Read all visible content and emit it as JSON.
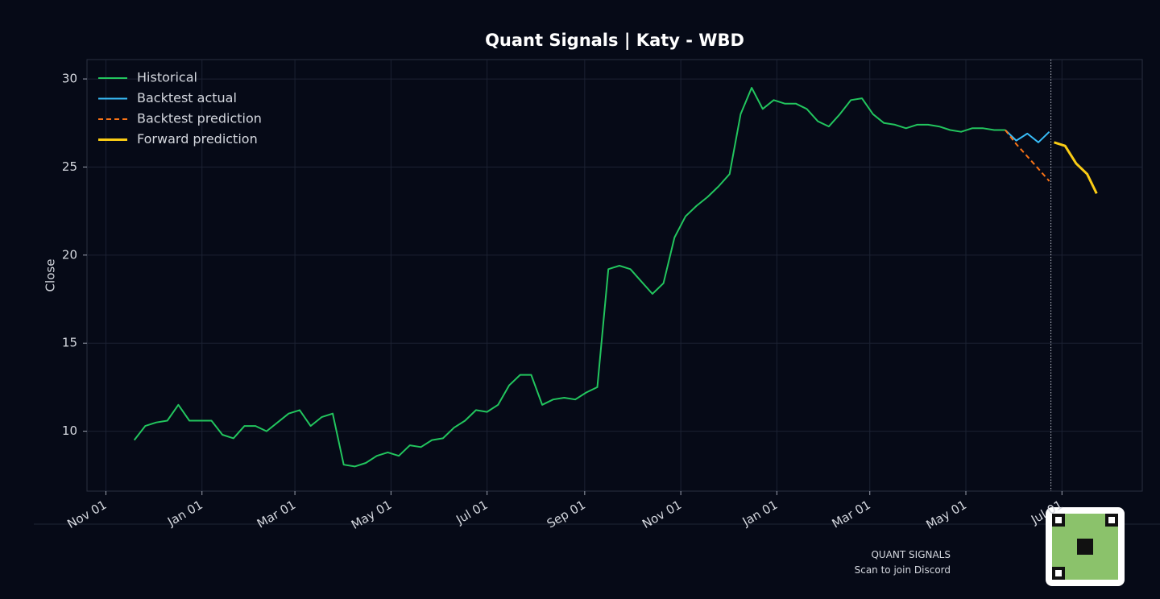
{
  "chart_data": {
    "type": "line",
    "title": "Quant Signals | Katy - WBD",
    "ylabel": "Close",
    "xlim": [
      "Oct 20",
      "Aug 21"
    ],
    "xticks": [
      "Nov 01",
      "Jan 01",
      "Mar 01",
      "May 01",
      "Jul 01",
      "Sep 01",
      "Nov 01",
      "Jan 01",
      "Mar 01",
      "May 01",
      "Jul 01"
    ],
    "ylim": [
      6.6,
      31.1
    ],
    "yticks": [
      10,
      15,
      20,
      25,
      30
    ],
    "grid": true,
    "legend": "upper left",
    "vline_x": "Jun 24",
    "series": [
      {
        "name": "Historical",
        "color": "#22c55e",
        "style": "solid",
        "x": [
          "Nov 19",
          "Nov 26",
          "Dec 03",
          "Dec 10",
          "Dec 17",
          "Dec 24",
          "Dec 31",
          "Jan 07",
          "Jan 14",
          "Jan 21",
          "Jan 28",
          "Feb 04",
          "Feb 11",
          "Feb 18",
          "Feb 25",
          "Mar 04",
          "Mar 11",
          "Mar 18",
          "Mar 25",
          "Apr 01",
          "Apr 08",
          "Apr 15",
          "Apr 22",
          "Apr 29",
          "May 06",
          "May 13",
          "May 20",
          "May 27",
          "Jun 03",
          "Jun 10",
          "Jun 17",
          "Jun 24",
          "Jul 01",
          "Jul 08",
          "Jul 15",
          "Jul 22",
          "Jul 29",
          "Aug 05",
          "Aug 12",
          "Aug 19",
          "Aug 26",
          "Sep 02",
          "Sep 09",
          "Sep 16",
          "Sep 23",
          "Sep 30",
          "Oct 07",
          "Oct 14",
          "Oct 21",
          "Oct 28",
          "Nov 04",
          "Nov 11",
          "Nov 18",
          "Nov 25",
          "Dec 02",
          "Dec 09",
          "Dec 16",
          "Dec 23",
          "Dec 30",
          "Jan 06",
          "Jan 13",
          "Jan 20",
          "Jan 27",
          "Feb 03",
          "Feb 10",
          "Feb 17",
          "Feb 24",
          "Mar 03",
          "Mar 10",
          "Mar 17",
          "Mar 24",
          "Mar 31",
          "Apr 07",
          "Apr 14",
          "Apr 21",
          "Apr 28",
          "May 05",
          "May 12",
          "May 19",
          "May 26"
        ],
        "values": [
          9.5,
          10.3,
          10.5,
          10.6,
          11.5,
          10.6,
          10.6,
          10.6,
          9.8,
          9.6,
          10.3,
          10.3,
          10.0,
          10.5,
          11.0,
          11.2,
          10.3,
          10.8,
          11.0,
          8.1,
          8.0,
          8.2,
          8.6,
          8.8,
          8.6,
          9.2,
          9.1,
          9.5,
          9.6,
          10.2,
          10.6,
          11.2,
          11.1,
          11.5,
          12.6,
          13.2,
          13.2,
          11.5,
          11.8,
          11.9,
          11.8,
          12.2,
          12.5,
          19.2,
          19.4,
          19.2,
          18.5,
          17.8,
          18.4,
          21.0,
          22.2,
          22.8,
          23.3,
          23.9,
          24.6,
          28.0,
          29.5,
          28.3,
          28.8,
          28.6,
          28.6,
          28.3,
          27.6,
          27.3,
          28.0,
          28.8,
          28.9,
          28.0,
          27.5,
          27.4,
          27.2,
          27.4,
          27.4,
          27.3,
          27.1,
          27.0,
          27.2,
          27.2,
          27.1,
          27.1
        ]
      },
      {
        "name": "Backtest actual",
        "color": "#38bdf8",
        "style": "solid",
        "x": [
          "May 26",
          "Jun 02",
          "Jun 09",
          "Jun 16",
          "Jun 23"
        ],
        "values": [
          27.1,
          26.5,
          26.9,
          26.4,
          27.0
        ]
      },
      {
        "name": "Backtest prediction",
        "color": "#f97316",
        "style": "dashed",
        "x": [
          "May 26",
          "Jun 02",
          "Jun 09",
          "Jun 16",
          "Jun 23"
        ],
        "values": [
          27.1,
          26.3,
          25.6,
          24.9,
          24.2
        ]
      },
      {
        "name": "Forward prediction",
        "color": "#facc15",
        "style": "thick",
        "x": [
          "Jun 26",
          "Jul 03",
          "Jul 10",
          "Jul 17",
          "Jul 23"
        ],
        "values": [
          26.4,
          26.2,
          25.2,
          24.6,
          23.5
        ]
      }
    ]
  },
  "footer": {
    "brand": "QUANT SIGNALS",
    "caption": "Scan to join Discord"
  }
}
